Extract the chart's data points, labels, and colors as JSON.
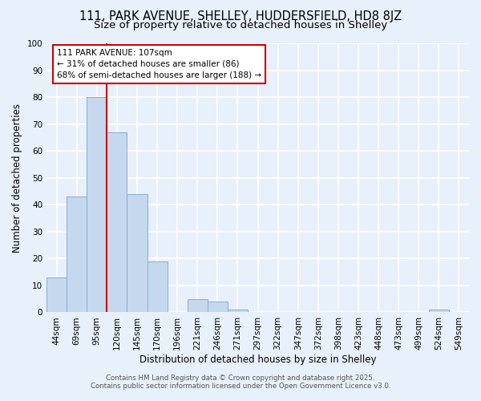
{
  "title1": "111, PARK AVENUE, SHELLEY, HUDDERSFIELD, HD8 8JZ",
  "title2": "Size of property relative to detached houses in Shelley",
  "xlabel": "Distribution of detached houses by size in Shelley",
  "ylabel": "Number of detached properties",
  "bar_labels": [
    "44sqm",
    "69sqm",
    "95sqm",
    "120sqm",
    "145sqm",
    "170sqm",
    "196sqm",
    "221sqm",
    "246sqm",
    "271sqm",
    "297sqm",
    "322sqm",
    "347sqm",
    "372sqm",
    "398sqm",
    "423sqm",
    "448sqm",
    "473sqm",
    "499sqm",
    "524sqm",
    "549sqm"
  ],
  "bar_values": [
    13,
    43,
    80,
    67,
    44,
    19,
    0,
    5,
    4,
    1,
    0,
    0,
    0,
    0,
    0,
    0,
    0,
    0,
    0,
    1,
    0
  ],
  "bar_color": "#c5d8ee",
  "bar_edge_color": "#85afd4",
  "ylim": [
    0,
    100
  ],
  "yticks": [
    0,
    10,
    20,
    30,
    40,
    50,
    60,
    70,
    80,
    90,
    100
  ],
  "vline_color": "#cc0000",
  "annotation_box_text": "111 PARK AVENUE: 107sqm\n← 31% of detached houses are smaller (86)\n68% of semi-detached houses are larger (188) →",
  "footnote1": "Contains HM Land Registry data © Crown copyright and database right 2025.",
  "footnote2": "Contains public sector information licensed under the Open Government Licence v3.0.",
  "background_color": "#e8f0fb",
  "grid_color": "#ffffff",
  "title_fontsize": 10.5,
  "subtitle_fontsize": 9.5,
  "axis_label_fontsize": 8.5,
  "tick_fontsize": 7.5,
  "footnote_fontsize": 6.2
}
